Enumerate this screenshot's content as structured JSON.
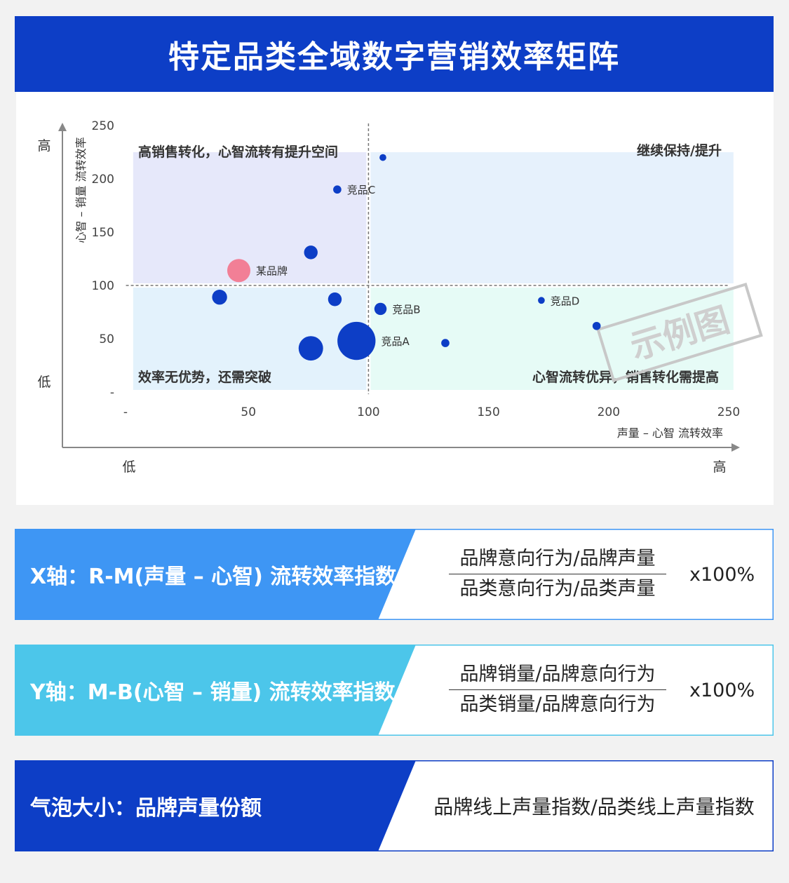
{
  "title": "特定品类全域数字营销效率矩阵",
  "chart_data": {
    "type": "scatter",
    "subtype": "bubble",
    "xlim": [
      0,
      250
    ],
    "ylim": [
      0,
      250
    ],
    "x_ticks": [
      "-",
      "50",
      "100",
      "150",
      "200",
      "250"
    ],
    "y_ticks": [
      "250",
      "200",
      "150",
      "100",
      "50",
      "-"
    ],
    "xlabel": "声量 – 心智 流转效率",
    "ylabel": "心智 – 销量 流转效率",
    "x_low": "低",
    "x_high": "高",
    "y_low": "低",
    "y_high": "高",
    "divider_x": 100,
    "divider_y": 100,
    "quadrants": {
      "top_left": "高销售转化，心智流转有提升空间",
      "top_right": "继续保持/提升",
      "bottom_left": "效率无优势，还需突破",
      "bottom_right": "心智流转优异，销售转化需提高"
    },
    "quadrant_colors": {
      "top_left": "#e6e8fa",
      "top_right": "#e6f1fc",
      "bottom_left": "#e3f2fc",
      "bottom_right": "#e6fbf6"
    },
    "watermark": "示例图",
    "points": [
      {
        "x": 106,
        "y": 220,
        "size": 5,
        "label": "",
        "color": "#0d3ec6"
      },
      {
        "x": 87,
        "y": 190,
        "size": 6,
        "label": "竞品C",
        "color": "#0d3ec6"
      },
      {
        "x": 76,
        "y": 131,
        "size": 10,
        "label": "",
        "color": "#0d3ec6"
      },
      {
        "x": 46,
        "y": 114,
        "size": 17,
        "label": "某品牌",
        "color": "#f27f96"
      },
      {
        "x": 38,
        "y": 89,
        "size": 11,
        "label": "",
        "color": "#0d3ec6"
      },
      {
        "x": 86,
        "y": 87,
        "size": 10,
        "label": "",
        "color": "#0d3ec6"
      },
      {
        "x": 105,
        "y": 78,
        "size": 9,
        "label": "竞品B",
        "color": "#0d3ec6"
      },
      {
        "x": 172,
        "y": 86,
        "size": 5,
        "label": "竞品D",
        "color": "#0d3ec6"
      },
      {
        "x": 195,
        "y": 62,
        "size": 6,
        "label": "",
        "color": "#0d3ec6"
      },
      {
        "x": 76,
        "y": 41,
        "size": 18,
        "label": "",
        "color": "#0d3ec6"
      },
      {
        "x": 95,
        "y": 48,
        "size": 28,
        "label": "竞品A",
        "color": "#0d3ec6"
      },
      {
        "x": 132,
        "y": 46,
        "size": 6,
        "label": "",
        "color": "#0d3ec6"
      }
    ]
  },
  "formulas": [
    {
      "label": "X轴：R-M(声量 – 心智) 流转效率指数",
      "color": "#3e96f4",
      "numerator": "品牌意向行为/品牌声量",
      "denominator": "品类意向行为/品类声量",
      "multiplier": "x100%"
    },
    {
      "label": "Y轴：M-B(心智 – 销量) 流转效率指数",
      "color": "#4cc6ea",
      "numerator": "品牌销量/品牌意向行为",
      "denominator": "品类销量/品牌意向行为",
      "multiplier": "x100%"
    }
  ],
  "bubble_size": {
    "label": "气泡大小：品牌声量份额",
    "color": "#0d3ec6",
    "formula": "品牌线上声量指数/品类线上声量指数"
  }
}
